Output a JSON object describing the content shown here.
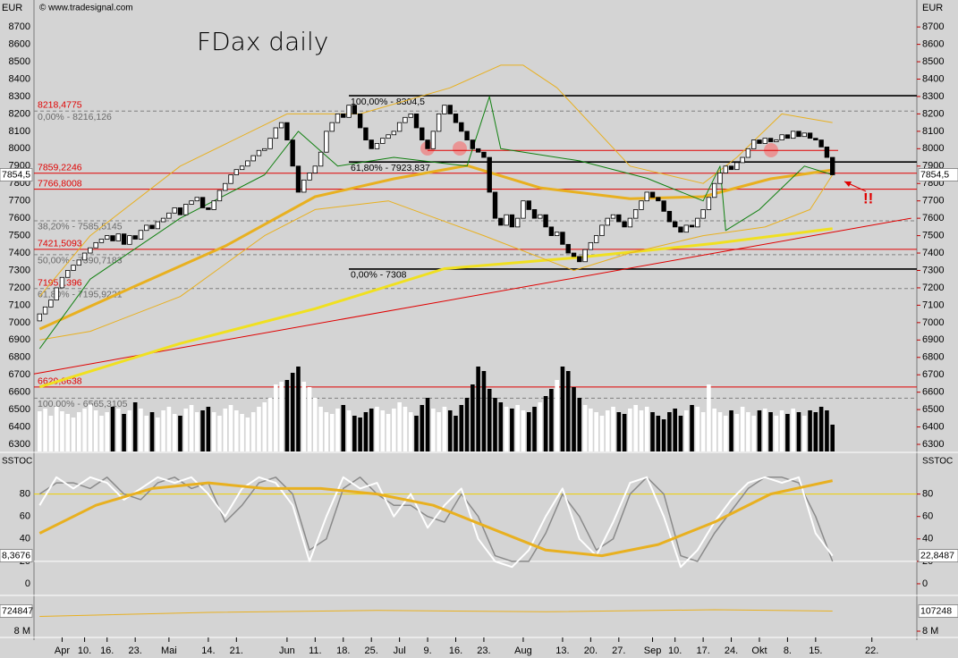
{
  "chart_data": [
    {
      "type": "candlestick",
      "title": "FDax daily",
      "unit_label": "EUR",
      "source": "© www.tradesignal.com",
      "annotation": "!!",
      "xlim": [
        -1,
        156
      ],
      "ylim": [
        6259,
        8855
      ],
      "yticks": [
        6300,
        6400,
        6500,
        6600,
        6700,
        6800,
        6900,
        7000,
        7100,
        7200,
        7300,
        7400,
        7500,
        7600,
        7700,
        7800,
        7900,
        8000,
        8100,
        8200,
        8300,
        8400,
        8500,
        8600,
        8700
      ],
      "open": [
        7010,
        7050,
        7090,
        7130,
        7200,
        7260,
        7300,
        7330,
        7360,
        7400,
        7430,
        7460,
        7480,
        7500,
        7470,
        7510,
        7450,
        7500,
        7480,
        7530,
        7560,
        7540,
        7580,
        7600,
        7630,
        7660,
        7620,
        7680,
        7700,
        7720,
        7660,
        7650,
        7700,
        7760,
        7800,
        7850,
        7880,
        7900,
        7930,
        7960,
        7990,
        8000,
        8060,
        8120,
        8150,
        8050,
        7900,
        7750,
        7820,
        7860,
        7900,
        7980,
        8100,
        8150,
        8200,
        8180,
        8250,
        8200,
        8120,
        8050,
        8000,
        8030,
        8060,
        8080,
        8100,
        8150,
        8180,
        8200,
        8120,
        8050,
        8000,
        8100,
        8200,
        8250,
        8200,
        8150,
        8100,
        8050,
        8000,
        7980,
        7950,
        7750,
        7600,
        7560,
        7620,
        7550,
        7600,
        7700,
        7650,
        7600,
        7620,
        7550,
        7500,
        7520,
        7450,
        7400,
        7380,
        7350,
        7420,
        7460,
        7500,
        7560,
        7600,
        7620,
        7580,
        7550,
        7600,
        7650,
        7700,
        7750,
        7720,
        7700,
        7640,
        7580,
        7550,
        7520,
        7560,
        7550,
        7600,
        7650,
        7720,
        7800,
        7860,
        7900,
        7880,
        7920,
        7950,
        8000,
        8050,
        8030,
        8060,
        8040,
        8050,
        8080,
        8060,
        8100,
        8070,
        8090,
        8060,
        8050,
        8010,
        7950
      ],
      "close": [
        7050,
        7090,
        7130,
        7200,
        7260,
        7300,
        7330,
        7360,
        7400,
        7430,
        7460,
        7480,
        7500,
        7470,
        7510,
        7450,
        7500,
        7480,
        7530,
        7560,
        7540,
        7580,
        7600,
        7630,
        7660,
        7620,
        7680,
        7700,
        7720,
        7660,
        7650,
        7700,
        7760,
        7800,
        7850,
        7880,
        7900,
        7930,
        7960,
        7990,
        8000,
        8060,
        8120,
        8150,
        8050,
        7900,
        7750,
        7820,
        7860,
        7900,
        7980,
        8100,
        8150,
        8200,
        8180,
        8250,
        8200,
        8120,
        8050,
        8000,
        8030,
        8060,
        8080,
        8100,
        8150,
        8180,
        8200,
        8120,
        8050,
        8000,
        8100,
        8200,
        8250,
        8200,
        8150,
        8100,
        8050,
        8000,
        7980,
        7950,
        7750,
        7600,
        7560,
        7620,
        7550,
        7600,
        7700,
        7650,
        7600,
        7620,
        7550,
        7500,
        7520,
        7450,
        7400,
        7380,
        7350,
        7420,
        7460,
        7500,
        7560,
        7600,
        7620,
        7580,
        7550,
        7600,
        7650,
        7700,
        7750,
        7720,
        7700,
        7640,
        7580,
        7550,
        7520,
        7560,
        7550,
        7600,
        7650,
        7720,
        7800,
        7860,
        7900,
        7880,
        7920,
        7950,
        8000,
        8050,
        8030,
        8060,
        8040,
        8050,
        8080,
        8060,
        8100,
        8070,
        8090,
        8060,
        8050,
        8010,
        7950,
        7850
      ],
      "volume_lim": [
        0,
        100
      ],
      "volume": [
        45,
        48,
        40,
        50,
        45,
        42,
        38,
        44,
        48,
        52,
        46,
        40,
        44,
        50,
        48,
        42,
        46,
        55,
        48,
        40,
        44,
        38,
        46,
        50,
        42,
        40,
        48,
        52,
        44,
        46,
        50,
        44,
        40,
        48,
        52,
        46,
        42,
        38,
        44,
        50,
        55,
        60,
        75,
        78,
        80,
        88,
        95,
        78,
        72,
        60,
        50,
        44,
        42,
        48,
        52,
        46,
        40,
        38,
        44,
        48,
        50,
        46,
        42,
        48,
        55,
        50,
        44,
        40,
        52,
        60,
        48,
        44,
        50,
        46,
        40,
        52,
        60,
        75,
        95,
        90,
        70,
        60,
        55,
        50,
        48,
        52,
        46,
        44,
        50,
        55,
        62,
        70,
        80,
        95,
        90,
        72,
        60,
        52,
        48,
        44,
        40,
        46,
        50,
        44,
        42,
        48,
        52,
        46,
        50,
        44,
        40,
        36,
        44,
        48,
        40,
        46,
        52,
        50,
        44,
        75,
        48,
        44,
        40,
        46,
        42,
        50,
        44,
        40,
        46,
        48,
        44,
        40,
        46,
        42,
        48,
        44,
        40,
        46,
        44,
        50,
        46,
        30
      ],
      "up_color": "#ffffff",
      "down_color": "#000000",
      "series": [
        {
          "color": "#e00000",
          "width": 1,
          "x": [
            -1,
            155
          ],
          "values": [
            6705,
            7600
          ]
        },
        {
          "color": "#f0e020",
          "width": 3,
          "x": [
            0,
            25,
            49,
            72,
            96,
            120,
            141
          ],
          "values": [
            6630,
            6880,
            7080,
            7310,
            7375,
            7455,
            7540
          ]
        },
        {
          "color": "#e8b020",
          "width": 3,
          "x": [
            0,
            17,
            33,
            49,
            63,
            76,
            89,
            105,
            118,
            130,
            141
          ],
          "values": [
            6963,
            7210,
            7440,
            7724,
            7827,
            7903,
            7775,
            7713,
            7724,
            7827,
            7878
          ]
        },
        {
          "color": "#e8b020",
          "width": 1,
          "x": [
            0,
            9,
            25,
            44,
            57,
            73,
            82,
            86,
            92,
            105,
            118,
            124,
            132,
            141
          ],
          "values": [
            7150,
            7500,
            7900,
            8200,
            8200,
            8350,
            8480,
            8480,
            8350,
            7900,
            7800,
            7950,
            8200,
            8150
          ]
        },
        {
          "color": "#e8b020",
          "width": 1,
          "x": [
            0,
            9,
            25,
            40,
            49,
            62,
            79,
            95,
            105,
            118,
            129,
            137,
            141
          ],
          "values": [
            6900,
            6950,
            7150,
            7500,
            7650,
            7700,
            7500,
            7300,
            7400,
            7500,
            7550,
            7650,
            7850
          ]
        },
        {
          "color": "#108010",
          "width": 1,
          "x": [
            0,
            9,
            25,
            40,
            46,
            53,
            63,
            76,
            80,
            82,
            96,
            108,
            118,
            121,
            122,
            128,
            136,
            141
          ],
          "values": [
            6850,
            7250,
            7600,
            7850,
            8100,
            7900,
            7950,
            7900,
            8300,
            8000,
            7930,
            7830,
            7700,
            7900,
            7530,
            7650,
            7900,
            7850
          ]
        }
      ],
      "levels": [
        {
          "value": 8304.5,
          "label": "100,00% - 8304,5",
          "color": "#000000",
          "style": "solid",
          "x": [
            55,
            156
          ]
        },
        {
          "value": 7923.837,
          "label": "61,80% - 7923,837",
          "color": "#000000",
          "style": "solid",
          "x": [
            55,
            156
          ]
        },
        {
          "value": 7308,
          "label": "0,00% - 7308",
          "color": "#000000",
          "style": "solid",
          "x": [
            55,
            156
          ]
        },
        {
          "value": 7990,
          "color": "#e00000",
          "style": "solid",
          "x": [
            69,
            142
          ]
        },
        {
          "value": 8218.4775,
          "label": "8218,4775",
          "color": "#e00000",
          "style": "none"
        },
        {
          "value": 8216.126,
          "label": "0,00% - 8216,126",
          "color": "#808080",
          "style": "dashed"
        },
        {
          "value": 7859.2246,
          "label": "7859,2246",
          "color": "#e00000",
          "style": "solid"
        },
        {
          "value": 7766.8008,
          "label": "7766,8008",
          "color": "#e00000",
          "style": "solid"
        },
        {
          "value": 7585.5145,
          "label": "38,20% - 7585,5145",
          "color": "#808080",
          "style": "dashed"
        },
        {
          "value": 7421.5093,
          "label": "7421,5093",
          "color": "#e00000",
          "style": "solid"
        },
        {
          "value": 7390.7183,
          "label": "50,00% - 7390,7183",
          "color": "#808080",
          "style": "dashed"
        },
        {
          "value": 7195.1396,
          "label": "7195,1396",
          "color": "#e00000",
          "style": "none"
        },
        {
          "value": 7195.9221,
          "label": "61,80% - 7195,9221",
          "color": "#808080",
          "style": "dashed"
        },
        {
          "value": 6629.8638,
          "label": "6629,8638",
          "color": "#e00000",
          "style": "solid"
        },
        {
          "value": 6565.3105,
          "label": "100,00% - 6565,3105",
          "color": "#808080",
          "style": "dashed"
        }
      ],
      "left_value_label": "7854,5",
      "right_value_label": "7854,5"
    },
    {
      "type": "line",
      "title": "SSTOC",
      "xlim": [
        -1,
        156
      ],
      "ylim": [
        -9.6,
        115.6
      ],
      "yticks": [
        0,
        20,
        40,
        60,
        80
      ],
      "levels": [
        {
          "value": 80,
          "color": "#f0d000",
          "style": "solid"
        },
        {
          "value": 20,
          "color": "#ffffff",
          "style": "solid"
        }
      ],
      "series": [
        {
          "color": "#8a8a8a",
          "width": 1.5,
          "x": [
            0,
            3,
            6,
            9,
            12,
            15,
            18,
            21,
            24,
            27,
            30,
            33,
            36,
            39,
            42,
            45,
            48,
            51,
            54,
            57,
            60,
            63,
            66,
            69,
            72,
            75,
            78,
            81,
            84,
            87,
            90,
            93,
            96,
            99,
            102,
            105,
            108,
            111,
            114,
            117,
            120,
            123,
            126,
            129,
            132,
            135,
            138,
            141
          ],
          "values": [
            80,
            90,
            90,
            85,
            95,
            80,
            75,
            90,
            95,
            85,
            90,
            55,
            70,
            90,
            95,
            80,
            30,
            40,
            85,
            95,
            80,
            70,
            70,
            60,
            55,
            80,
            60,
            25,
            20,
            20,
            45,
            80,
            60,
            30,
            40,
            80,
            95,
            80,
            25,
            20,
            45,
            65,
            85,
            95,
            95,
            90,
            60,
            20
          ]
        },
        {
          "color": "#ffffff",
          "width": 2,
          "x": [
            0,
            3,
            6,
            9,
            12,
            15,
            18,
            21,
            24,
            27,
            30,
            33,
            36,
            39,
            42,
            45,
            48,
            51,
            54,
            57,
            60,
            63,
            66,
            69,
            72,
            75,
            78,
            81,
            84,
            87,
            90,
            93,
            96,
            99,
            102,
            105,
            108,
            111,
            114,
            117,
            120,
            123,
            126,
            129,
            132,
            135,
            138,
            141
          ],
          "values": [
            70,
            95,
            85,
            95,
            90,
            75,
            85,
            95,
            90,
            95,
            80,
            60,
            85,
            95,
            90,
            70,
            20,
            60,
            95,
            85,
            90,
            60,
            80,
            50,
            70,
            85,
            40,
            20,
            15,
            30,
            60,
            85,
            40,
            25,
            55,
            90,
            95,
            60,
            15,
            30,
            55,
            75,
            90,
            95,
            90,
            95,
            45,
            25
          ]
        },
        {
          "color": "#e8b020",
          "width": 3,
          "x": [
            0,
            10,
            20,
            30,
            40,
            50,
            60,
            70,
            80,
            90,
            100,
            110,
            120,
            130,
            141
          ],
          "values": [
            45,
            70,
            85,
            90,
            85,
            85,
            80,
            70,
            50,
            30,
            25,
            35,
            55,
            80,
            92
          ]
        }
      ],
      "left_value_label": "8,3676",
      "right_value_label": "22,8487"
    },
    {
      "type": "line",
      "xlim": [
        -1,
        156
      ],
      "ylim": [
        7600000,
        10600000
      ],
      "yticks": [
        {
          "value": 8000000,
          "label": "8 M"
        }
      ],
      "series": [
        {
          "color": "#e8b020",
          "width": 1,
          "x": [
            0,
            30,
            60,
            90,
            120,
            141
          ],
          "values": [
            9100000,
            9400000,
            9550000,
            9450000,
            9600000,
            9500000
          ]
        }
      ],
      "left_value_label": "724847",
      "right_value_label": "107248",
      "xticks": [
        {
          "value": 4,
          "label": "Apr"
        },
        {
          "value": 8,
          "label": "10."
        },
        {
          "value": 12,
          "label": "16."
        },
        {
          "value": 17,
          "label": "23."
        },
        {
          "value": 23,
          "label": "Mai"
        },
        {
          "value": 30,
          "label": "14."
        },
        {
          "value": 35,
          "label": "21."
        },
        {
          "value": 44,
          "label": "Jun"
        },
        {
          "value": 49,
          "label": "11."
        },
        {
          "value": 54,
          "label": "18."
        },
        {
          "value": 59,
          "label": "25."
        },
        {
          "value": 64,
          "label": "Jul"
        },
        {
          "value": 69,
          "label": "9."
        },
        {
          "value": 74,
          "label": "16."
        },
        {
          "value": 79,
          "label": "23."
        },
        {
          "value": 86,
          "label": "Aug"
        },
        {
          "value": 93,
          "label": "13."
        },
        {
          "value": 98,
          "label": "20."
        },
        {
          "value": 103,
          "label": "27."
        },
        {
          "value": 109,
          "label": "Sep"
        },
        {
          "value": 113,
          "label": "10."
        },
        {
          "value": 118,
          "label": "17."
        },
        {
          "value": 123,
          "label": "24."
        },
        {
          "value": 128,
          "label": "Okt"
        },
        {
          "value": 133,
          "label": "8."
        },
        {
          "value": 138,
          "label": "15."
        },
        {
          "value": 148,
          "label": "22."
        }
      ]
    }
  ]
}
